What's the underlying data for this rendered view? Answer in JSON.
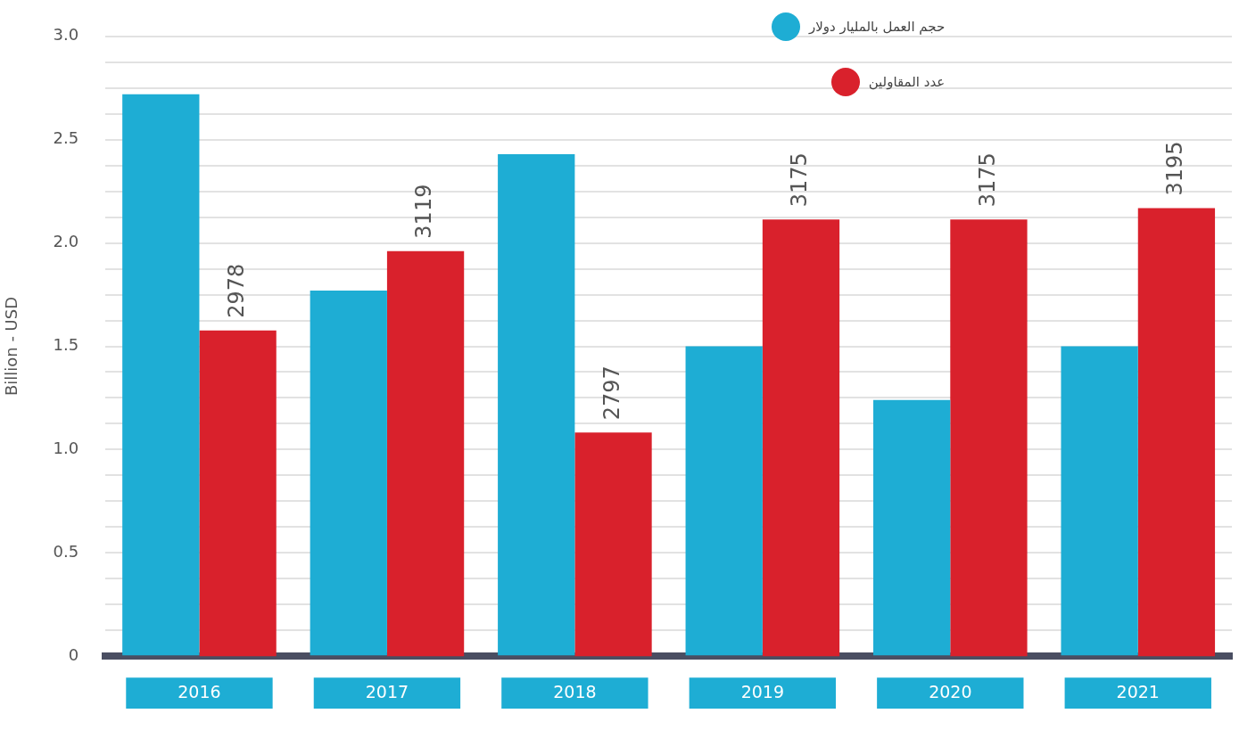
{
  "chart_data": {
    "type": "bar",
    "ylabel": "Billion - USD",
    "categories": [
      "2016",
      "2017",
      "2018",
      "2019",
      "2020",
      "2021"
    ],
    "series": [
      {
        "name": "حجم العمل بالمليار دولار",
        "color": "#1eadd4",
        "values": [
          2.72,
          1.77,
          2.43,
          1.5,
          1.24,
          1.5
        ]
      },
      {
        "name": "عدد المقاولين",
        "color": "#d9212c",
        "axis": "y2",
        "values": [
          2978,
          3119,
          2797,
          3175,
          3175,
          3195
        ],
        "value_labels": [
          "2978",
          "3119",
          "2797",
          "3175",
          "3175",
          "3195"
        ]
      }
    ],
    "ylim": [
      0,
      3
    ],
    "yticks": [
      0,
      {
        "value": 0.125,
        "label": null
      },
      {
        "value": 0.25,
        "label": null
      },
      {
        "value": 0.375,
        "label": null
      },
      0.5,
      {
        "value": 0.625,
        "label": null
      },
      {
        "value": 0.75,
        "label": null
      },
      {
        "value": 0.875,
        "label": null
      },
      {
        "value": 1,
        "label": "1.0"
      },
      {
        "value": 1.125,
        "label": null
      },
      {
        "value": 1.25,
        "label": null
      },
      {
        "value": 1.375,
        "label": null
      },
      1.5,
      {
        "value": 1.625,
        "label": null
      },
      {
        "value": 1.75,
        "label": null
      },
      {
        "value": 1.875,
        "label": null
      },
      {
        "value": 2,
        "label": "2.0"
      },
      {
        "value": 2.125,
        "label": null
      },
      {
        "value": 2.25,
        "label": null
      },
      {
        "value": 2.375,
        "label": null
      },
      2.5,
      {
        "value": 2.625,
        "label": null
      },
      {
        "value": 2.75,
        "label": null
      },
      {
        "value": 2.875,
        "label": null
      },
      {
        "value": 3,
        "label": "3.0"
      }
    ],
    "y2lim": [
      2400,
      3500
    ],
    "grid": "y",
    "legend": "top"
  }
}
